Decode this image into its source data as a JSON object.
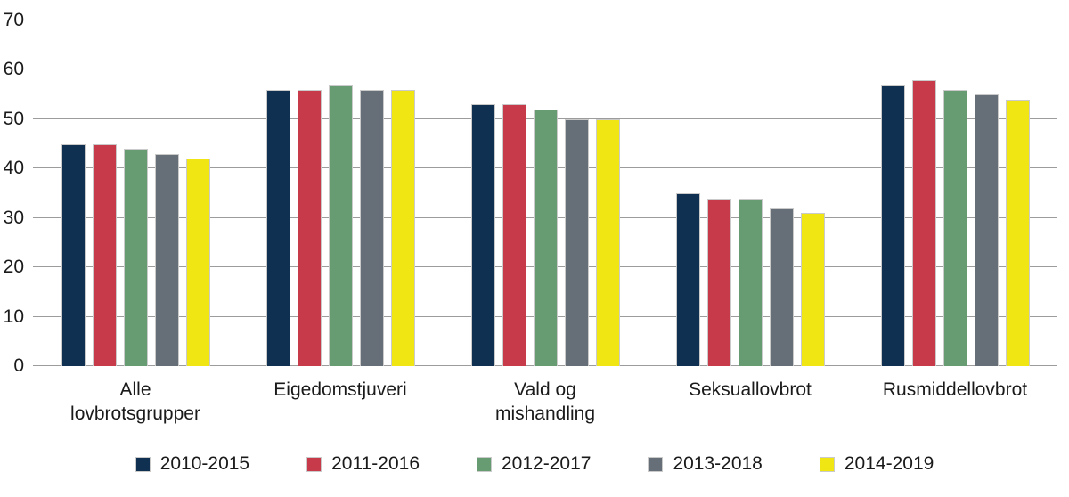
{
  "chart_data": {
    "type": "bar",
    "title": "",
    "categories": [
      "Alle\nlovbrotsgrupper",
      "Eigedomstjuveri",
      "Vald og\nmishandling",
      "Seksuallovbrot",
      "Rusmiddellovbrot"
    ],
    "series": [
      {
        "name": "2010-2015",
        "color": "#0f3050",
        "values": [
          45,
          56,
          53,
          35,
          57
        ]
      },
      {
        "name": "2011-2016",
        "color": "#c63a4a",
        "values": [
          45,
          56,
          53,
          34,
          58
        ]
      },
      {
        "name": "2012-2017",
        "color": "#679b72",
        "values": [
          44,
          57,
          52,
          34,
          56
        ]
      },
      {
        "name": "2013-2018",
        "color": "#666f78",
        "values": [
          43,
          56,
          50,
          32,
          55
        ]
      },
      {
        "name": "2014-2019",
        "color": "#f0e614",
        "values": [
          42,
          56,
          50,
          31,
          54
        ]
      }
    ],
    "xlabel": "",
    "ylabel": "",
    "ylim": [
      0,
      70
    ],
    "ytick_step": 10,
    "yticks": [
      "0",
      "10",
      "20",
      "30",
      "40",
      "50",
      "60",
      "70"
    ],
    "grid": true,
    "legend_position": "bottom"
  },
  "colors": {
    "background": "#ffffff",
    "gridline": "#9c9c9c",
    "text": "#1a1a1a",
    "bar_border": "#cacaca"
  }
}
